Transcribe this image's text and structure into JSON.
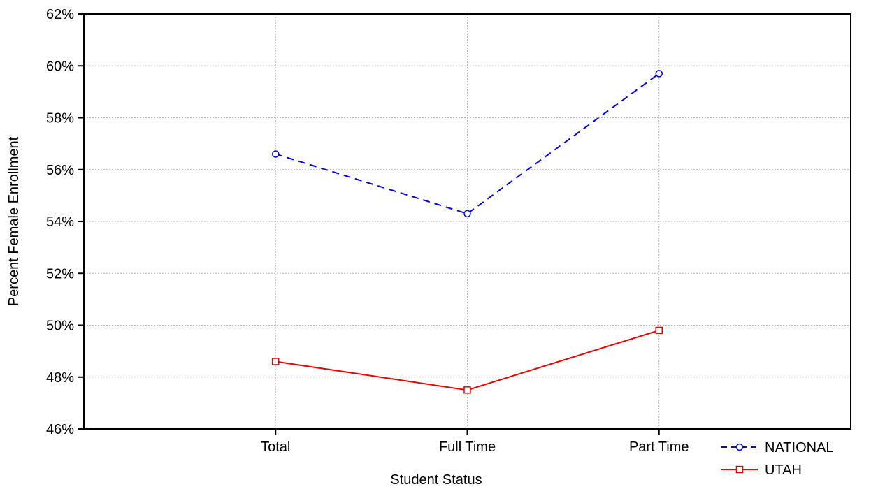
{
  "chart_data": {
    "type": "line",
    "title": "",
    "xlabel": "Student Status",
    "ylabel": "Percent Female Enrollment",
    "categories": [
      "Total",
      "Full Time",
      "Part Time"
    ],
    "ylim": [
      46,
      62
    ],
    "yticks": [
      46,
      48,
      50,
      52,
      54,
      56,
      58,
      60,
      62
    ],
    "ytick_labels": [
      "46%",
      "48%",
      "50%",
      "52%",
      "54%",
      "56%",
      "58%",
      "60%",
      "62%"
    ],
    "grid": true,
    "legend_position": "bottom-right",
    "series": [
      {
        "name": "NATIONAL",
        "values": [
          56.6,
          54.3,
          59.7
        ],
        "color": "#0000ee",
        "line_style": "dashed",
        "marker": "circle"
      },
      {
        "name": "UTAH",
        "values": [
          48.6,
          47.5,
          49.8
        ],
        "color": "#ee0000",
        "line_style": "solid",
        "marker": "square"
      }
    ]
  }
}
